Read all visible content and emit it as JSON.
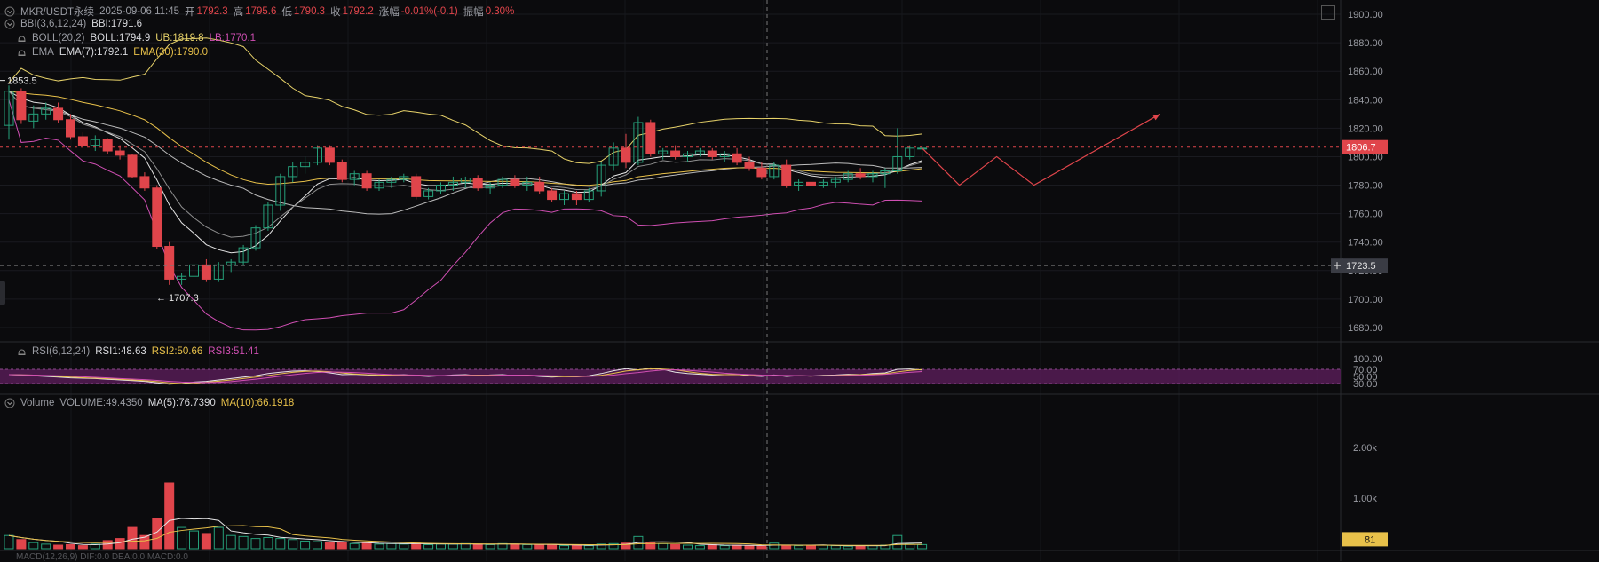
{
  "header": {
    "symbol": "MKR/USDT永续",
    "datetime": "2025-09-06 11:45",
    "open_label": "开",
    "open": "1792.3",
    "high_label": "高",
    "high": "1795.6",
    "low_label": "低",
    "low": "1790.3",
    "close_label": "收",
    "close": "1792.2",
    "change_label": "涨幅",
    "change": "-0.01%(-0.1)",
    "amplitude_label": "振幅",
    "amplitude": "0.30%"
  },
  "indicators": {
    "bbi": {
      "name": "BBI(3,6,12,24)",
      "value": "BBI:1791.6"
    },
    "boll": {
      "name": "BOLL(20,2)",
      "mid": "BOLL:1794.9",
      "ub": "UB:1819.8",
      "lb": "LB:1770.1"
    },
    "ema": {
      "name": "EMA",
      "ema7": "EMA(7):1792.1",
      "ema30": "EMA(30):1790.0"
    },
    "rsi": {
      "name": "RSI(6,12,24)",
      "rsi1": "RSI1:48.63",
      "rsi2": "RSI2:50.66",
      "rsi3": "RSI3:51.41"
    },
    "volume": {
      "name": "Volume",
      "value": "VOLUME:49.4350",
      "ma5": "MA(5):76.7390",
      "ma10": "MA(10):66.1918"
    },
    "macd_partial": "MACD(12,26,9)  DIF:0.0  DEA:0.0  MACD:0.0"
  },
  "price_axis": {
    "ticks": [
      "1900.00",
      "1880.00",
      "1860.00",
      "1840.00",
      "1820.00",
      "1800.00",
      "1780.00",
      "1760.00",
      "1740.00",
      "1720.00",
      "1700.00",
      "1680.00"
    ],
    "current_price": "1806.7",
    "crosshair_price": "1723.5"
  },
  "rsi_axis": {
    "ticks": [
      "100.00",
      "70.00",
      "50.00",
      "30.00"
    ]
  },
  "volume_axis": {
    "ticks": [
      "2.00k",
      "1.00k"
    ],
    "current": "81"
  },
  "annotations": {
    "high_marker": "1853.5",
    "low_marker": "← 1707.3"
  },
  "colors": {
    "up": "#26a17b",
    "down": "#e0454b",
    "boll_ub": "#e8d36a",
    "boll_lb": "#d04fb3",
    "mid": "#c8c8c8",
    "ema30": "#e8c14a",
    "rsi_band": "#5a1d5a",
    "forecast": "#e0454b"
  },
  "chart_data": {
    "type": "candlestick",
    "y_range": [
      1670,
      1910
    ],
    "candles": [
      [
        1822,
        1850,
        1812,
        1846
      ],
      [
        1846,
        1848,
        1823,
        1826
      ],
      [
        1825,
        1836,
        1820,
        1830
      ],
      [
        1830,
        1838,
        1826,
        1834
      ],
      [
        1834,
        1838,
        1824,
        1826
      ],
      [
        1826,
        1830,
        1812,
        1814
      ],
      [
        1814,
        1817,
        1806,
        1808
      ],
      [
        1808,
        1815,
        1804,
        1812
      ],
      [
        1812,
        1813,
        1802,
        1804
      ],
      [
        1804,
        1808,
        1798,
        1801
      ],
      [
        1801,
        1802,
        1785,
        1786
      ],
      [
        1786,
        1789,
        1776,
        1778
      ],
      [
        1778,
        1780,
        1735,
        1737
      ],
      [
        1737,
        1740,
        1710,
        1714
      ],
      [
        1714,
        1718,
        1710,
        1716
      ],
      [
        1716,
        1726,
        1712,
        1724
      ],
      [
        1724,
        1728,
        1712,
        1714
      ],
      [
        1714,
        1726,
        1712,
        1724
      ],
      [
        1724,
        1728,
        1719,
        1726
      ],
      [
        1726,
        1738,
        1724,
        1736
      ],
      [
        1736,
        1752,
        1734,
        1750
      ],
      [
        1750,
        1768,
        1748,
        1766
      ],
      [
        1766,
        1788,
        1762,
        1786
      ],
      [
        1786,
        1796,
        1782,
        1793
      ],
      [
        1793,
        1800,
        1788,
        1796
      ],
      [
        1796,
        1808,
        1794,
        1806
      ],
      [
        1806,
        1808,
        1794,
        1796
      ],
      [
        1796,
        1798,
        1782,
        1784
      ],
      [
        1784,
        1790,
        1780,
        1788
      ],
      [
        1788,
        1790,
        1776,
        1778
      ],
      [
        1778,
        1784,
        1776,
        1782
      ],
      [
        1782,
        1786,
        1778,
        1784
      ],
      [
        1784,
        1788,
        1782,
        1786
      ],
      [
        1786,
        1788,
        1770,
        1772
      ],
      [
        1772,
        1778,
        1770,
        1776
      ],
      [
        1776,
        1782,
        1774,
        1780
      ],
      [
        1780,
        1786,
        1776,
        1782
      ],
      [
        1782,
        1786,
        1778,
        1785
      ],
      [
        1785,
        1787,
        1776,
        1778
      ],
      [
        1778,
        1782,
        1774,
        1780
      ],
      [
        1780,
        1786,
        1778,
        1784
      ],
      [
        1784,
        1787,
        1778,
        1780
      ],
      [
        1780,
        1786,
        1776,
        1782
      ],
      [
        1782,
        1786,
        1774,
        1776
      ],
      [
        1776,
        1778,
        1768,
        1770
      ],
      [
        1770,
        1776,
        1766,
        1774
      ],
      [
        1774,
        1776,
        1766,
        1770
      ],
      [
        1770,
        1778,
        1768,
        1776
      ],
      [
        1776,
        1796,
        1772,
        1794
      ],
      [
        1794,
        1810,
        1790,
        1806
      ],
      [
        1806,
        1816,
        1792,
        1796
      ],
      [
        1796,
        1828,
        1794,
        1824
      ],
      [
        1824,
        1826,
        1800,
        1802
      ],
      [
        1802,
        1806,
        1798,
        1804
      ],
      [
        1804,
        1808,
        1798,
        1800
      ],
      [
        1800,
        1804,
        1796,
        1802
      ],
      [
        1802,
        1806,
        1800,
        1804
      ],
      [
        1804,
        1806,
        1798,
        1800
      ],
      [
        1800,
        1804,
        1796,
        1802
      ],
      [
        1802,
        1806,
        1794,
        1796
      ],
      [
        1796,
        1800,
        1790,
        1792
      ],
      [
        1792,
        1796,
        1784,
        1786
      ],
      [
        1786,
        1796,
        1784,
        1794
      ],
      [
        1794,
        1798,
        1778,
        1780
      ],
      [
        1780,
        1784,
        1776,
        1782
      ],
      [
        1782,
        1784,
        1778,
        1780
      ],
      [
        1780,
        1784,
        1778,
        1782
      ],
      [
        1782,
        1786,
        1778,
        1784
      ],
      [
        1784,
        1790,
        1782,
        1788
      ],
      [
        1788,
        1792,
        1784,
        1786
      ],
      [
        1786,
        1790,
        1782,
        1788
      ],
      [
        1788,
        1792,
        1778,
        1790
      ],
      [
        1790,
        1820,
        1788,
        1800
      ],
      [
        1800,
        1808,
        1798,
        1806
      ],
      [
        1806,
        1808,
        1800,
        1806
      ]
    ],
    "volumes": [
      260,
      180,
      120,
      90,
      70,
      80,
      60,
      90,
      160,
      200,
      420,
      260,
      600,
      1300,
      420,
      350,
      300,
      420,
      260,
      240,
      200,
      220,
      200,
      180,
      150,
      140,
      120,
      120,
      100,
      110,
      90,
      100,
      90,
      110,
      80,
      90,
      90,
      100,
      90,
      80,
      100,
      90,
      80,
      70,
      80,
      60,
      70,
      60,
      90,
      100,
      110,
      240,
      130,
      100,
      80,
      70,
      60,
      80,
      60,
      70,
      60,
      50,
      110,
      70,
      60,
      60,
      70,
      60,
      50,
      60,
      60,
      70,
      260,
      90,
      81
    ],
    "rsi": [
      55,
      54,
      52,
      50,
      48,
      46,
      45,
      44,
      42,
      40,
      38,
      36,
      32,
      28,
      30,
      34,
      36,
      40,
      44,
      48,
      52,
      58,
      62,
      65,
      66,
      64,
      60,
      55,
      56,
      54,
      52,
      54,
      55,
      52,
      50,
      52,
      54,
      55,
      52,
      54,
      55,
      52,
      53,
      50,
      48,
      50,
      49,
      52,
      58,
      66,
      72,
      68,
      74,
      70,
      62,
      58,
      56,
      54,
      55,
      56,
      52,
      50,
      54,
      50,
      52,
      51,
      53,
      54,
      56,
      55,
      58,
      60,
      70,
      71,
      68
    ],
    "forecast_path": [
      [
        0,
        1806
      ],
      [
        1,
        1780
      ],
      [
        2,
        1800
      ],
      [
        3,
        1780
      ],
      [
        4,
        1830
      ]
    ]
  }
}
